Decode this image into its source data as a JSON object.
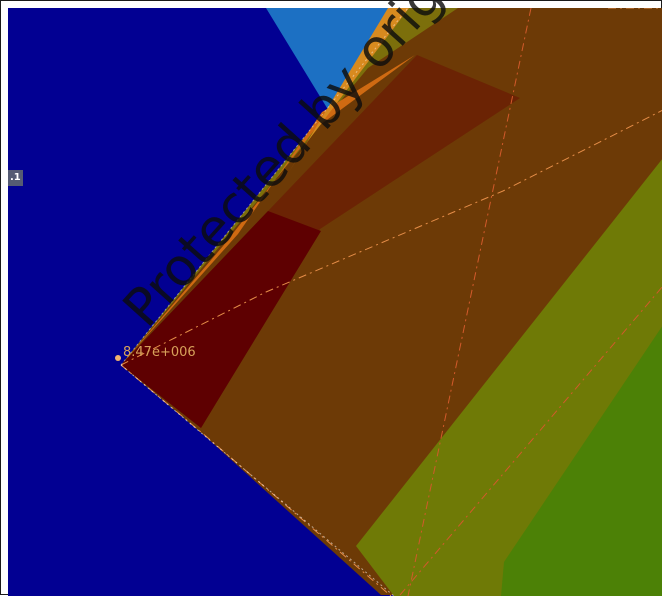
{
  "viewer": {
    "side_tag": ".1",
    "node_value": "8.47e+006",
    "watermark": "Protected by original copyright"
  },
  "colors": {
    "background_blue": "#020092",
    "top_blue_patch": "#1c70c3",
    "dark_red_face": "#5e0001",
    "brown_face": "#6b2304",
    "olive_face": "#7c6f0b",
    "yellow_olive_face": "#6f7a06",
    "green_face": "#4c8106",
    "orange_edge": "#cf6a12",
    "dashed_line": "#e58d48"
  },
  "icons": [
    "node-marker-icon"
  ]
}
